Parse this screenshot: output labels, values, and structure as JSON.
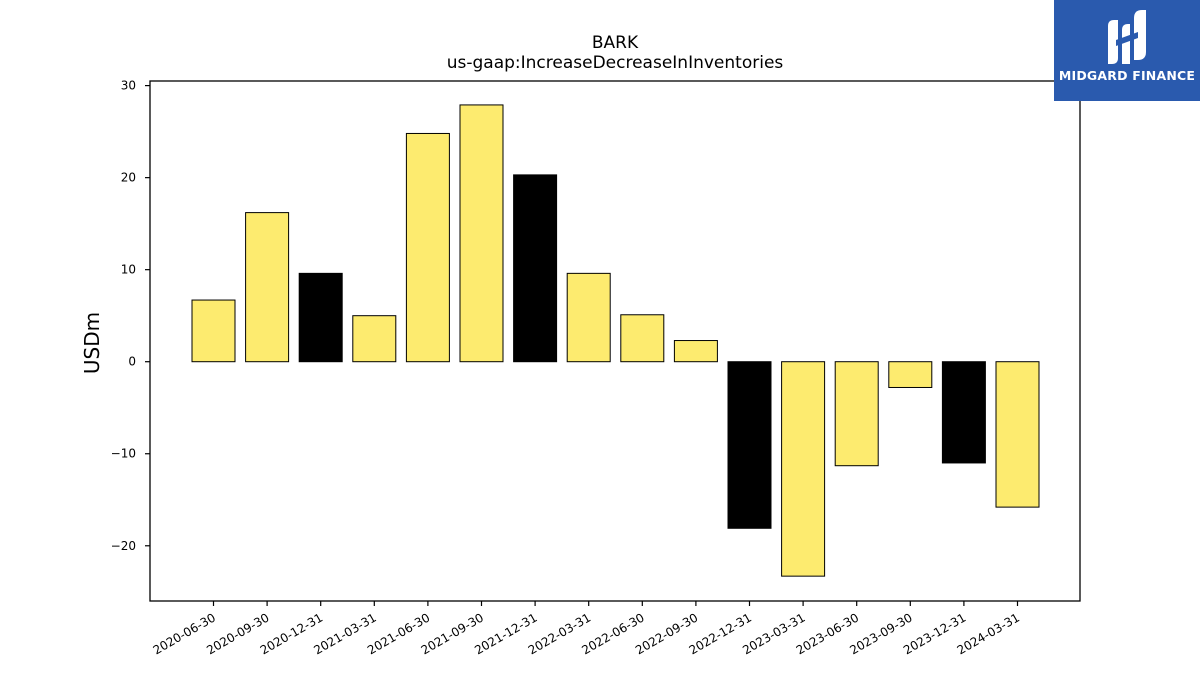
{
  "logo": {
    "text": "MIDGARD FINANCE",
    "background_color": "#2a5aae"
  },
  "chart_data": {
    "type": "bar",
    "title": "BARK",
    "subtitle": "us-gaap:IncreaseDecreaseInInventories",
    "xlabel": "",
    "ylabel": "USDm",
    "ylim": [
      -26,
      30.5
    ],
    "yticks": [
      -20,
      -10,
      0,
      10,
      20,
      30
    ],
    "ytick_labels": [
      "−20",
      "−10",
      "0",
      "10",
      "20",
      "30"
    ],
    "grid": false,
    "categories": [
      "2020-06-30",
      "2020-09-30",
      "2020-12-31",
      "2021-03-31",
      "2021-06-30",
      "2021-09-30",
      "2021-12-31",
      "2022-03-31",
      "2022-06-30",
      "2022-09-30",
      "2022-12-31",
      "2023-03-31",
      "2023-06-30",
      "2023-09-30",
      "2023-12-31",
      "2024-03-31"
    ],
    "values": [
      6.7,
      16.2,
      9.6,
      5.0,
      24.8,
      27.9,
      20.3,
      9.6,
      5.1,
      2.3,
      -18.1,
      -23.3,
      -11.3,
      -2.8,
      -11.0,
      -15.8
    ],
    "bar_colors": [
      "#fdeb6f",
      "#fdeb6f",
      "#000000",
      "#fdeb6f",
      "#fdeb6f",
      "#fdeb6f",
      "#000000",
      "#fdeb6f",
      "#fdeb6f",
      "#fdeb6f",
      "#000000",
      "#fdeb6f",
      "#fdeb6f",
      "#fdeb6f",
      "#000000",
      "#fdeb6f"
    ]
  }
}
